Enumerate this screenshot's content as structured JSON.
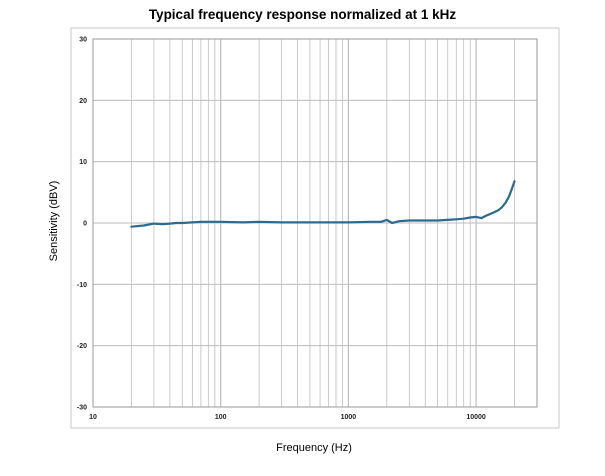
{
  "chart_data": {
    "type": "line",
    "title": "Typical frequency response normalized at 1 kHz",
    "xlabel": "Frequency (Hz)",
    "ylabel": "Sensitivity (dBV)",
    "xscale": "log",
    "xlim": [
      10,
      30000
    ],
    "ylim": [
      -30,
      30
    ],
    "x_ticks": [
      10,
      100,
      1000,
      10000
    ],
    "x_tick_labels": [
      "10",
      "100",
      "1000",
      "10000"
    ],
    "y_ticks": [
      -30,
      -20,
      -10,
      0,
      10,
      20,
      30
    ],
    "y_tick_labels": [
      "-30",
      "-20",
      "-10",
      "0",
      "10",
      "20",
      "30"
    ],
    "grid": true,
    "legend": "none",
    "colors": {
      "line": "#2b6b8f",
      "grid": "#bdbdbd",
      "frame": "#9a9a9a"
    },
    "series": [
      {
        "x": [
          20,
          25,
          30,
          35,
          40,
          45,
          50,
          60,
          70,
          80,
          100,
          150,
          200,
          300,
          500,
          700,
          1000,
          1500,
          1800,
          2000,
          2200,
          2500,
          3000,
          4000,
          5000,
          6000,
          7000,
          8000,
          9000,
          10000,
          11000,
          12000,
          13000,
          14000,
          15000,
          16000,
          17000,
          18000,
          19000,
          20000
        ],
        "y": [
          -0.6,
          -0.4,
          -0.1,
          -0.2,
          -0.1,
          0.0,
          0.0,
          0.1,
          0.2,
          0.2,
          0.2,
          0.1,
          0.2,
          0.1,
          0.1,
          0.1,
          0.1,
          0.2,
          0.2,
          0.5,
          0.0,
          0.3,
          0.4,
          0.4,
          0.4,
          0.5,
          0.6,
          0.7,
          0.9,
          1.0,
          0.8,
          1.2,
          1.5,
          1.8,
          2.1,
          2.6,
          3.3,
          4.2,
          5.5,
          6.8
        ]
      }
    ]
  }
}
